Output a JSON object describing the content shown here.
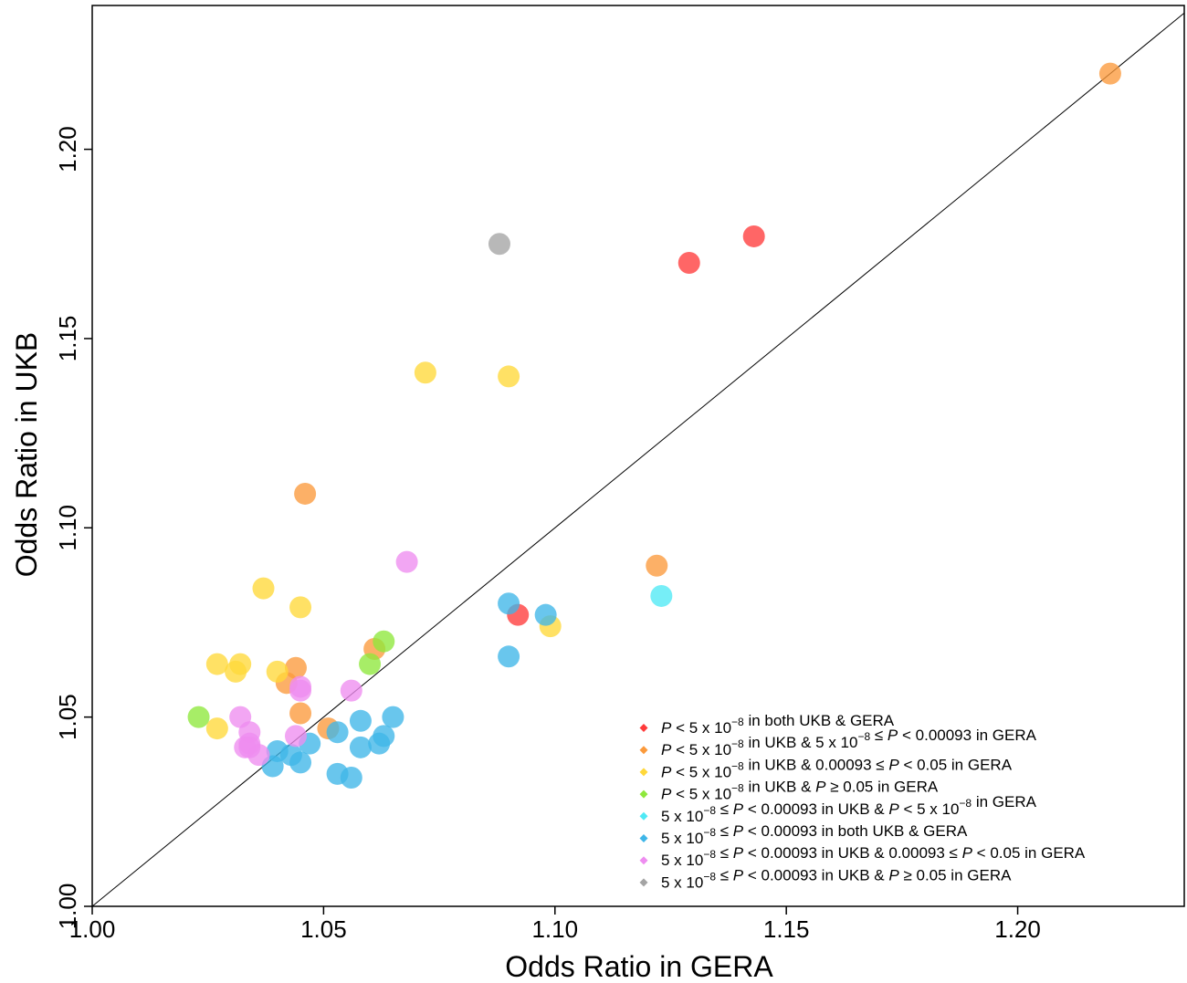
{
  "chart_data": {
    "type": "scatter",
    "title": "",
    "xlabel": "Odds Ratio in GERA",
    "ylabel": "Odds Ratio in UKB",
    "xlim": [
      1.0,
      1.236
    ],
    "ylim": [
      1.0,
      1.238
    ],
    "x_ticks": [
      "1.00",
      "1.05",
      "1.10",
      "1.15",
      "1.20"
    ],
    "y_ticks": [
      "1.00",
      "1.05",
      "1.10",
      "1.15",
      "1.20"
    ],
    "reference_line": "y = x",
    "grid": false,
    "legend_position": "bottom-right",
    "categories": [
      {
        "key": "red",
        "color": "#ff3b3b",
        "legend_parts": [
          {
            "t": "P",
            "i": true
          },
          {
            "t": " < 5 x 10"
          },
          {
            "t": "−8",
            "sup": true
          },
          {
            "t": "  in both UKB & GERA"
          }
        ],
        "points": [
          [
            1.129,
            1.17
          ],
          [
            1.143,
            1.177
          ],
          [
            1.092,
            1.077
          ]
        ]
      },
      {
        "key": "orange",
        "color": "#fb9a3c",
        "legend_parts": [
          {
            "t": "P",
            "i": true
          },
          {
            "t": " < 5 x 10"
          },
          {
            "t": "−8",
            "sup": true
          },
          {
            "t": "  in UKB & 5 x 10"
          },
          {
            "t": "−8",
            "sup": true
          },
          {
            "t": "  ≤ "
          },
          {
            "t": "P",
            "i": true
          },
          {
            "t": " < 0.00093 in GERA"
          }
        ],
        "points": [
          [
            1.22,
            1.22
          ],
          [
            1.046,
            1.109
          ],
          [
            1.122,
            1.09
          ],
          [
            1.044,
            1.063
          ],
          [
            1.061,
            1.068
          ],
          [
            1.042,
            1.059
          ],
          [
            1.045,
            1.051
          ],
          [
            1.051,
            1.047
          ]
        ]
      },
      {
        "key": "yellow",
        "color": "#ffd83a",
        "legend_parts": [
          {
            "t": "P",
            "i": true
          },
          {
            "t": " < 5 x 10"
          },
          {
            "t": "−8",
            "sup": true
          },
          {
            "t": "  in UKB & 0.00093  ≤ "
          },
          {
            "t": "P",
            "i": true
          },
          {
            "t": " < 0.05 in GERA"
          }
        ],
        "points": [
          [
            1.072,
            1.141
          ],
          [
            1.09,
            1.14
          ],
          [
            1.037,
            1.084
          ],
          [
            1.045,
            1.079
          ],
          [
            1.027,
            1.064
          ],
          [
            1.032,
            1.064
          ],
          [
            1.031,
            1.062
          ],
          [
            1.04,
            1.062
          ],
          [
            1.099,
            1.074
          ],
          [
            1.027,
            1.047
          ]
        ]
      },
      {
        "key": "green",
        "color": "#8ee83c",
        "legend_parts": [
          {
            "t": "P",
            "i": true
          },
          {
            "t": " < 5 x 10"
          },
          {
            "t": "−8",
            "sup": true
          },
          {
            "t": "  in UKB & "
          },
          {
            "t": "P",
            "i": true
          },
          {
            "t": " ≥ 0.05 in GERA"
          }
        ],
        "points": [
          [
            1.023,
            1.05
          ],
          [
            1.06,
            1.064
          ],
          [
            1.063,
            1.07
          ]
        ]
      },
      {
        "key": "cyan",
        "color": "#4fe9f5",
        "legend_parts": [
          {
            "t": "5 x 10"
          },
          {
            "t": "−8",
            "sup": true
          },
          {
            "t": "  ≤ "
          },
          {
            "t": "P",
            "i": true
          },
          {
            "t": " < 0.00093 in UKB & "
          },
          {
            "t": "P",
            "i": true
          },
          {
            "t": " < 5 x 10"
          },
          {
            "t": "−8",
            "sup": true
          },
          {
            "t": "  in GERA"
          }
        ],
        "points": [
          [
            1.123,
            1.082
          ]
        ]
      },
      {
        "key": "blue",
        "color": "#3fb6e8",
        "legend_parts": [
          {
            "t": "5 x 10"
          },
          {
            "t": "−8",
            "sup": true
          },
          {
            "t": "  ≤ "
          },
          {
            "t": "P",
            "i": true
          },
          {
            "t": " < 0.00093 in both UKB & GERA"
          }
        ],
        "points": [
          [
            1.09,
            1.08
          ],
          [
            1.098,
            1.077
          ],
          [
            1.09,
            1.066
          ],
          [
            1.065,
            1.05
          ],
          [
            1.058,
            1.049
          ],
          [
            1.053,
            1.046
          ],
          [
            1.063,
            1.045
          ],
          [
            1.047,
            1.043
          ],
          [
            1.062,
            1.043
          ],
          [
            1.058,
            1.042
          ],
          [
            1.04,
            1.041
          ],
          [
            1.043,
            1.04
          ],
          [
            1.039,
            1.037
          ],
          [
            1.045,
            1.038
          ],
          [
            1.053,
            1.035
          ],
          [
            1.056,
            1.034
          ]
        ]
      },
      {
        "key": "violet",
        "color": "#ee8df0",
        "legend_parts": [
          {
            "t": "5 x 10"
          },
          {
            "t": "−8",
            "sup": true
          },
          {
            "t": "  ≤ "
          },
          {
            "t": "P",
            "i": true
          },
          {
            "t": " < 0.00093 in UKB & 0.00093  ≤ "
          },
          {
            "t": "P",
            "i": true
          },
          {
            "t": " < 0.05 in GERA"
          }
        ],
        "points": [
          [
            1.068,
            1.091
          ],
          [
            1.056,
            1.057
          ],
          [
            1.045,
            1.058
          ],
          [
            1.045,
            1.057
          ],
          [
            1.032,
            1.05
          ],
          [
            1.034,
            1.046
          ],
          [
            1.044,
            1.045
          ],
          [
            1.034,
            1.043
          ],
          [
            1.033,
            1.042
          ],
          [
            1.034,
            1.042
          ],
          [
            1.036,
            1.04
          ]
        ]
      },
      {
        "key": "grey",
        "color": "#a4a4a4",
        "legend_parts": [
          {
            "t": "5 x 10"
          },
          {
            "t": "−8",
            "sup": true
          },
          {
            "t": "  ≤ "
          },
          {
            "t": "P",
            "i": true
          },
          {
            "t": " < 0.00093 in UKB & "
          },
          {
            "t": "P",
            "i": true
          },
          {
            "t": " ≥ 0.05 in GERA"
          }
        ],
        "points": [
          [
            1.088,
            1.175
          ]
        ]
      }
    ]
  }
}
